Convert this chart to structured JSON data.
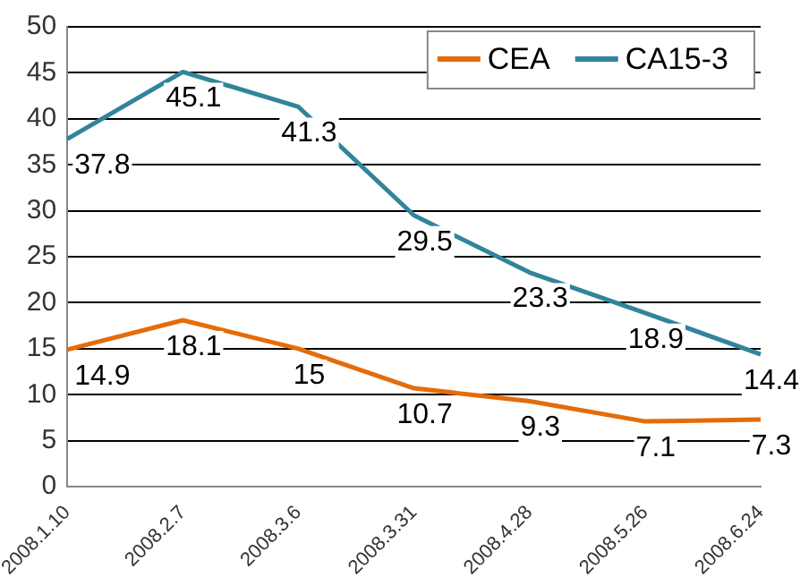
{
  "chart_data": {
    "type": "line",
    "categories": [
      "2008.1.10",
      "2008.2.7",
      "2008.3.6",
      "2008.3.31",
      "2008.4.28",
      "2008.5.26",
      "2008.6.24"
    ],
    "series": [
      {
        "name": "CEA",
        "color": "#e46c0a",
        "values": [
          14.9,
          18.1,
          15,
          10.7,
          9.3,
          7.1,
          7.3
        ]
      },
      {
        "name": "CA15-3",
        "color": "#31849b",
        "values": [
          37.8,
          45.1,
          41.3,
          29.5,
          23.3,
          18.9,
          14.4
        ]
      }
    ],
    "ylim": [
      0,
      50
    ],
    "yticks": [
      0,
      5,
      10,
      15,
      20,
      25,
      30,
      35,
      40,
      45,
      50
    ],
    "grid": "y",
    "legend": "top right",
    "data_labels": true,
    "marker": "none",
    "line_style": "solid"
  }
}
